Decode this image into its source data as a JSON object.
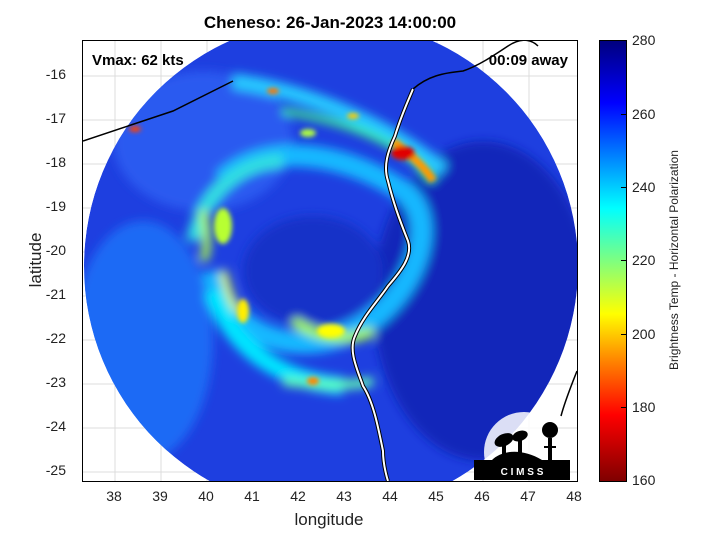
{
  "title": "Cheneso: 26-Jan-2023 14:00:00",
  "vmax_text": "Vmax: 62 kts",
  "time_offset_text": "00:09 away",
  "xlabel": "longitude",
  "ylabel": "latitude",
  "colorbar_label": "Brightness Temp - Horizontal Polarization",
  "logo_text": "C I M S S",
  "x_axis": {
    "range": [
      37.3,
      48.0
    ],
    "ticks": [
      "38",
      "39",
      "40",
      "41",
      "42",
      "43",
      "44",
      "45",
      "46",
      "47",
      "48"
    ]
  },
  "y_axis": {
    "range": [
      -25.2,
      -15.25
    ],
    "ticks": [
      "-16",
      "-17",
      "-18",
      "-19",
      "-20",
      "-21",
      "-22",
      "-23",
      "-24",
      "-25"
    ]
  },
  "colorbar": {
    "range": [
      160,
      280
    ],
    "ticks": [
      "280",
      "260",
      "240",
      "220",
      "200",
      "180",
      "160"
    ]
  },
  "colors": {
    "background_disk": "#1e3fe0",
    "cold_band": "#00e5ff",
    "warm_band": "#ffff00",
    "hot_spot": "#e00000",
    "coastline": "#ffffff"
  }
}
